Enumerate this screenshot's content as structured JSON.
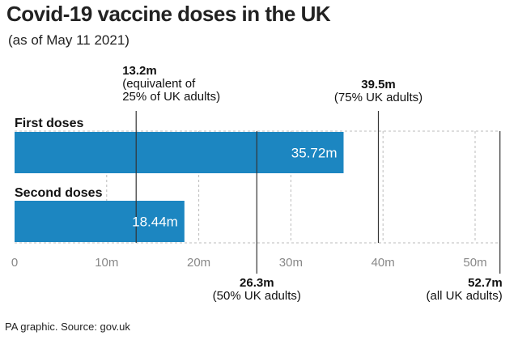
{
  "title": "Covid-19 vaccine doses in the UK",
  "subtitle": "(as of May 11 2021)",
  "source": "PA graphic. Source: gov.uk",
  "colors": {
    "bar": "#1c86c1",
    "grid": "#bbbbbb",
    "ref_line": "#333333"
  },
  "chart_data": {
    "type": "bar",
    "orientation": "horizontal",
    "categories": [
      "First doses",
      "Second doses"
    ],
    "values": [
      35.72,
      18.44
    ],
    "value_labels": [
      "35.72m",
      "18.44m"
    ],
    "xlim": [
      0,
      52.7
    ],
    "ticks": [
      0,
      10,
      20,
      30,
      40,
      50
    ],
    "tick_labels": [
      "0",
      "10m",
      "20m",
      "30m",
      "40m",
      "50m"
    ],
    "grid": true,
    "reference_lines": [
      {
        "value": 13.2,
        "label": "13.2m",
        "note": [
          "(equivalent of",
          "25% of UK adults)"
        ],
        "position": "top"
      },
      {
        "value": 39.5,
        "label": "39.5m",
        "note": [
          "(75% UK adults)"
        ],
        "position": "top"
      },
      {
        "value": 26.3,
        "label": "26.3m",
        "note": [
          "(50% UK adults)"
        ],
        "position": "bottom"
      },
      {
        "value": 52.7,
        "label": "52.7m",
        "note": [
          "(all UK adults)"
        ],
        "position": "bottom"
      }
    ]
  }
}
